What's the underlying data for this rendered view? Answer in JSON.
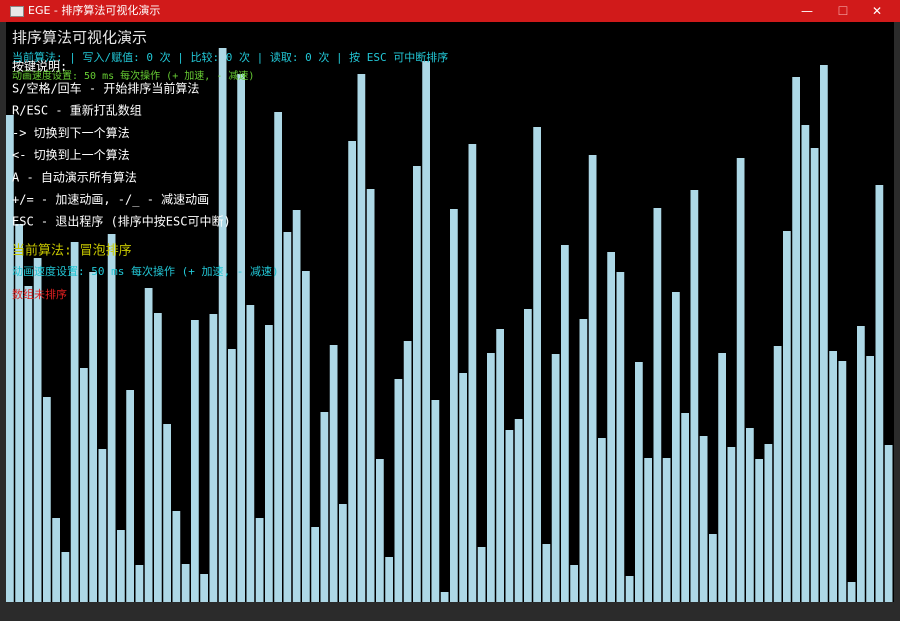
{
  "window": {
    "title": "EGE - 排序算法可视化演示"
  },
  "header": {
    "title": "排序算法可视化演示",
    "status": "当前算法:  | 写入/赋值: 0 次 | 比较: 0 次 | 读取: 0 次 | 按 ESC 可中断排序",
    "keys_heading": "按键说明:",
    "speed_top": "动画速度设置: 50 ms 每次操作 (+ 加速, - 减速)"
  },
  "instructions": [
    "S/空格/回车 - 开始排序当前算法",
    "R/ESC - 重新打乱数组",
    "->  切换到下一个算法",
    "<-  切换到上一个算法",
    "A - 自动演示所有算法",
    "+/= - 加速动画, -/_ - 减速动画",
    "ESC - 退出程序 (排序中按ESC可中断)"
  ],
  "current_algorithm": "当前算法: 冒泡排序",
  "speed": "动画速度设置: 50 ms 每次操作 (+ 加速, - 减速)",
  "sort_state": "数组未排序",
  "bars": {
    "values": [
      487,
      378,
      316,
      344,
      205,
      84,
      50,
      360,
      234,
      330,
      153,
      368,
      72,
      212,
      37,
      314,
      289,
      178,
      91,
      38,
      282,
      28,
      288,
      554,
      253,
      528,
      297,
      84,
      277,
      490,
      370,
      392,
      331,
      75,
      190,
      257,
      98,
      461,
      528,
      413,
      143,
      45,
      223,
      261,
      436,
      541,
      202,
      10,
      393,
      229,
      458,
      55,
      249,
      273,
      172,
      183,
      293,
      475,
      58,
      248,
      357,
      37,
      283,
      447,
      164,
      350,
      330,
      26,
      240,
      144,
      394,
      144,
      310,
      189,
      412,
      166,
      68,
      249,
      155,
      444,
      174,
      143,
      158,
      256,
      371,
      525,
      477,
      454,
      537,
      251,
      241,
      20,
      276,
      246,
      417,
      157
    ]
  }
}
